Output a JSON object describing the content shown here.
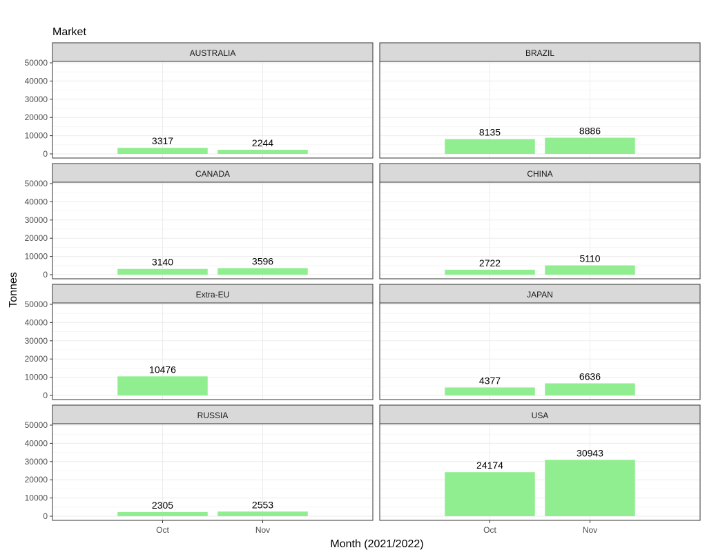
{
  "chart_data": {
    "type": "bar",
    "title": "Market",
    "xlabel": "Month (2021/2022)",
    "ylabel": "Tonnes",
    "categories": [
      "Oct",
      "Nov"
    ],
    "ylim": [
      0,
      50000
    ],
    "yticks": [
      0,
      10000,
      20000,
      30000,
      40000,
      50000
    ],
    "panels": [
      {
        "name": "AUSTRALIA",
        "values": [
          3317,
          2244
        ]
      },
      {
        "name": "BRAZIL",
        "values": [
          8135,
          8886
        ]
      },
      {
        "name": "CANADA",
        "values": [
          3140,
          3596
        ]
      },
      {
        "name": "CHINA",
        "values": [
          2722,
          5110
        ]
      },
      {
        "name": "Extra-EU",
        "values": [
          10476,
          null
        ]
      },
      {
        "name": "JAPAN",
        "values": [
          4377,
          6636
        ]
      },
      {
        "name": "RUSSIA",
        "values": [
          2305,
          2553
        ]
      },
      {
        "name": "USA",
        "values": [
          24174,
          30943
        ]
      }
    ],
    "bar_color": "#90ee90",
    "strip_color": "#d9d9d9",
    "grid": true
  }
}
